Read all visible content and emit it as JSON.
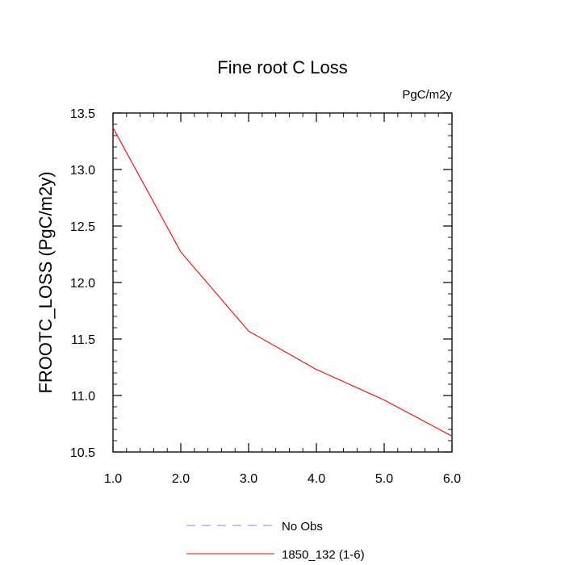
{
  "chart_data": {
    "type": "line",
    "title": "Fine root C Loss",
    "units": "PgC/m2y",
    "ylabel": "FROOTC_LOSS  (PgC/m2y)",
    "xlabel": "",
    "xlim": [
      1.0,
      6.0
    ],
    "ylim": [
      10.5,
      13.5
    ],
    "x_ticks": [
      "1.0",
      "2.0",
      "3.0",
      "4.0",
      "5.0",
      "6.0"
    ],
    "y_ticks": [
      "10.5",
      "11.0",
      "11.5",
      "12.0",
      "12.5",
      "13.0",
      "13.5"
    ],
    "grid": false,
    "legend_position": "bottom",
    "series": [
      {
        "name": "1850_132 (1-6)",
        "color": "#ff0000",
        "dash": "solid",
        "x": [
          1,
          2,
          3,
          4,
          5,
          6
        ],
        "y": [
          13.37,
          12.27,
          11.57,
          11.23,
          10.96,
          10.64
        ]
      }
    ],
    "legend": [
      {
        "label": "No Obs",
        "color": "#8080ff",
        "dash": "dashed"
      },
      {
        "label": "1850_132 (1-6)",
        "color": "#ff0000",
        "dash": "solid"
      }
    ]
  }
}
